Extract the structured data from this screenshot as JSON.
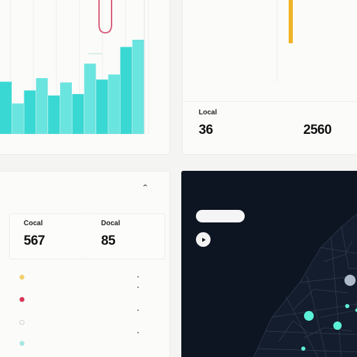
{
  "chart_data": {
    "type": "bar",
    "categories": [
      "",
      "",
      "",
      "",
      "",
      "",
      "",
      "",
      "",
      "",
      "",
      ""
    ],
    "values": [
      72,
      42,
      60,
      77,
      53,
      71,
      55,
      97,
      75,
      82,
      120,
      130
    ],
    "ylim": [
      0,
      140
    ],
    "x_tick_labels": [
      "",
      "",
      "",
      "",
      "",
      ""
    ],
    "y_tick_labels": [
      "",
      "",
      "",
      "",
      "",
      "",
      ""
    ],
    "accent": "#3cdcd6"
  },
  "stats": {
    "row1": "",
    "row2": "",
    "row3": "",
    "row4": "",
    "row5": "",
    "row6": "",
    "side_header": "",
    "side_sub": "",
    "local_label": "Local",
    "local_value": "36",
    "right_label": "",
    "right_value": "2560",
    "accent_bar": "#f1b429"
  },
  "left_panel": {
    "box1_label": "Cocal",
    "box1_value": "567",
    "box1_unit": "",
    "box2_label": "Docal",
    "box2_value": "85",
    "box2_unit": "",
    "legend": [
      {
        "label": "",
        "color": "#f4cf6e"
      },
      {
        "label": "",
        "color": "#d93657"
      },
      {
        "label": "",
        "color": "#ffffff"
      },
      {
        "label": "",
        "color": "#a7e7e1"
      }
    ]
  },
  "map": {
    "title": "",
    "button_label": "",
    "link_label": "",
    "play_label": "",
    "bg": "#0d1422",
    "marker_color": "#5cf0d8"
  }
}
